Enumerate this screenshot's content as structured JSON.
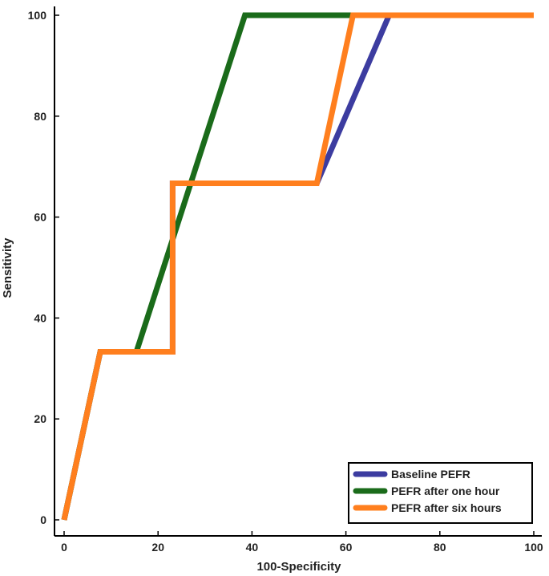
{
  "chart_data": {
    "type": "line",
    "title": "",
    "xlabel": "100-Specificity",
    "ylabel": "Sensitivity",
    "xlim": [
      0,
      100
    ],
    "ylim": [
      0,
      100
    ],
    "xticks": [
      "0",
      "20",
      "40",
      "60",
      "80",
      "100"
    ],
    "yticks": [
      "0",
      "20",
      "40",
      "60",
      "80",
      "100"
    ],
    "grid": false,
    "legend_position": "bottom-right",
    "series": [
      {
        "name": "Baseline PEFR",
        "color": "#3c3ca0",
        "points": [
          [
            0,
            0
          ],
          [
            7.7,
            33.3
          ],
          [
            23.1,
            33.3
          ],
          [
            23.1,
            66.7
          ],
          [
            53.8,
            66.7
          ],
          [
            69.2,
            100
          ],
          [
            100,
            100
          ]
        ]
      },
      {
        "name": "PEFR after one hour",
        "color": "#1a6b1a",
        "points": [
          [
            0,
            0
          ],
          [
            7.7,
            33.3
          ],
          [
            15.4,
            33.3
          ],
          [
            38.5,
            100
          ],
          [
            61.5,
            100
          ],
          [
            100,
            100
          ]
        ]
      },
      {
        "name": "PEFR after six hours",
        "color": "#ff7f1e",
        "points": [
          [
            0,
            0
          ],
          [
            7.7,
            33.3
          ],
          [
            23.1,
            33.3
          ],
          [
            23.1,
            66.7
          ],
          [
            53.8,
            66.7
          ],
          [
            61.5,
            100
          ],
          [
            100,
            100
          ]
        ]
      }
    ]
  }
}
